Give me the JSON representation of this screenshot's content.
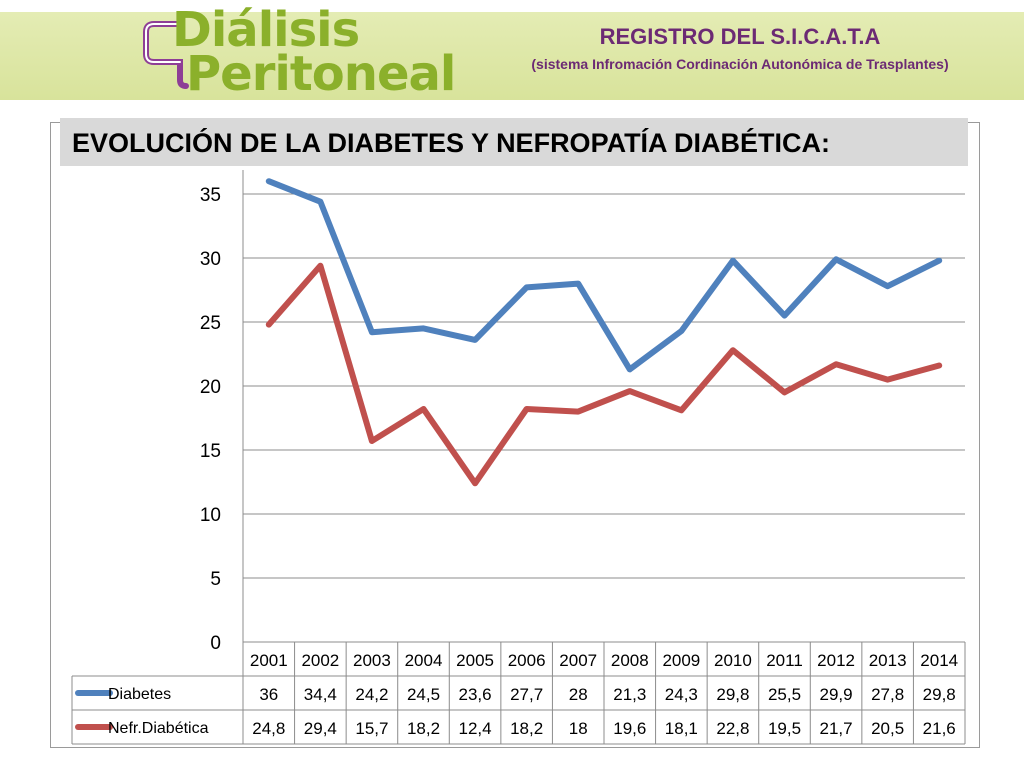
{
  "header": {
    "logo_line1": "Diálisis",
    "logo_line2": "Peritoneal",
    "registry_title": "REGISTRO DEL S.I.C.A.T.A",
    "registry_subtitle": "(sistema Infromación Cordinación Autonómica de Trasplantes)"
  },
  "colors": {
    "banner": "#d8e39b",
    "logo_green": "#8bb02b",
    "logo_purple": "#8e3e96",
    "header_text": "#6c2a74"
  },
  "chart_data": {
    "type": "line",
    "title": "EVOLUCIÓN DE LA DIABETES Y NEFROPATÍA DIABÉTICA:",
    "categories": [
      "2001",
      "2002",
      "2003",
      "2004",
      "2005",
      "2006",
      "2007",
      "2008",
      "2009",
      "2010",
      "2011",
      "2012",
      "2013",
      "2014"
    ],
    "series": [
      {
        "name": "Diabetes",
        "color": "#4f81bd",
        "values": [
          36,
          34.4,
          24.2,
          24.5,
          23.6,
          27.7,
          28,
          21.3,
          24.3,
          29.8,
          25.5,
          29.9,
          27.8,
          29.8
        ],
        "labels": [
          "36",
          "34,4",
          "24,2",
          "24,5",
          "23,6",
          "27,7",
          "28",
          "21,3",
          "24,3",
          "29,8",
          "25,5",
          "29,9",
          "27,8",
          "29,8"
        ]
      },
      {
        "name": "Nefr.Diabética",
        "color": "#c0504d",
        "values": [
          24.8,
          29.4,
          15.7,
          18.2,
          12.4,
          18.2,
          18,
          19.6,
          18.1,
          22.8,
          19.5,
          21.7,
          20.5,
          21.6
        ],
        "labels": [
          "24,8",
          "29,4",
          "15,7",
          "18,2",
          "12,4",
          "18,2",
          "18",
          "19,6",
          "18,1",
          "22,8",
          "19,5",
          "21,7",
          "20,5",
          "21,6"
        ]
      }
    ],
    "ylim": [
      0,
      35
    ],
    "yticks": [
      0,
      5,
      10,
      15,
      20,
      25,
      30,
      35
    ],
    "grid": true,
    "legend": "data-table-below"
  }
}
